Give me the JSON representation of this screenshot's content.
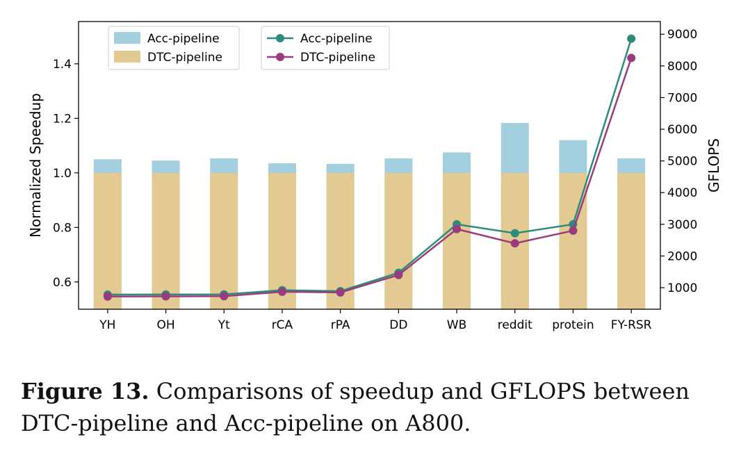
{
  "chart_data": {
    "type": "bar",
    "categories": [
      "YH",
      "OH",
      "Yt",
      "rCA",
      "rPA",
      "DD",
      "WB",
      "reddit",
      "protein",
      "FY-RSR"
    ],
    "bar_series": [
      {
        "name": "Acc-pipeline",
        "values": [
          1.05,
          1.045,
          1.053,
          1.035,
          1.033,
          1.053,
          1.075,
          1.183,
          1.12,
          1.053
        ],
        "color": "#a3cfde"
      },
      {
        "name": "DTC-pipeline",
        "values": [
          1.0,
          1.0,
          1.0,
          1.0,
          1.0,
          1.0,
          1.0,
          1.0,
          1.0,
          1.0
        ],
        "color": "#e3c992"
      }
    ],
    "line_series": [
      {
        "name": "Acc-pipeline",
        "values": [
          780,
          785,
          790,
          920,
          890,
          1470,
          3000,
          2720,
          3000,
          8860
        ],
        "color": "#2e8b7a"
      },
      {
        "name": "DTC-pipeline",
        "values": [
          720,
          725,
          730,
          870,
          850,
          1400,
          2850,
          2400,
          2800,
          8250
        ],
        "color": "#993b7f"
      }
    ],
    "ylabel": "Normalized Speedup",
    "y2label": "GFLOPS",
    "ylim": [
      0.5,
      1.555
    ],
    "y2lim": [
      320,
      9400
    ],
    "yticks": [
      "0.6",
      "0.8",
      "1.0",
      "1.2",
      "1.4"
    ],
    "y2ticks": [
      "1000",
      "2000",
      "3000",
      "4000",
      "5000",
      "6000",
      "7000",
      "8000",
      "9000"
    ],
    "bar_legend_placement": "upper-left",
    "line_legend_placement": "upper-center",
    "grid": false
  },
  "caption": {
    "label": "Figure 13.",
    "text": " Comparisons of speedup and GFLOPS between DTC-pipeline and Acc-pipeline on A800."
  }
}
